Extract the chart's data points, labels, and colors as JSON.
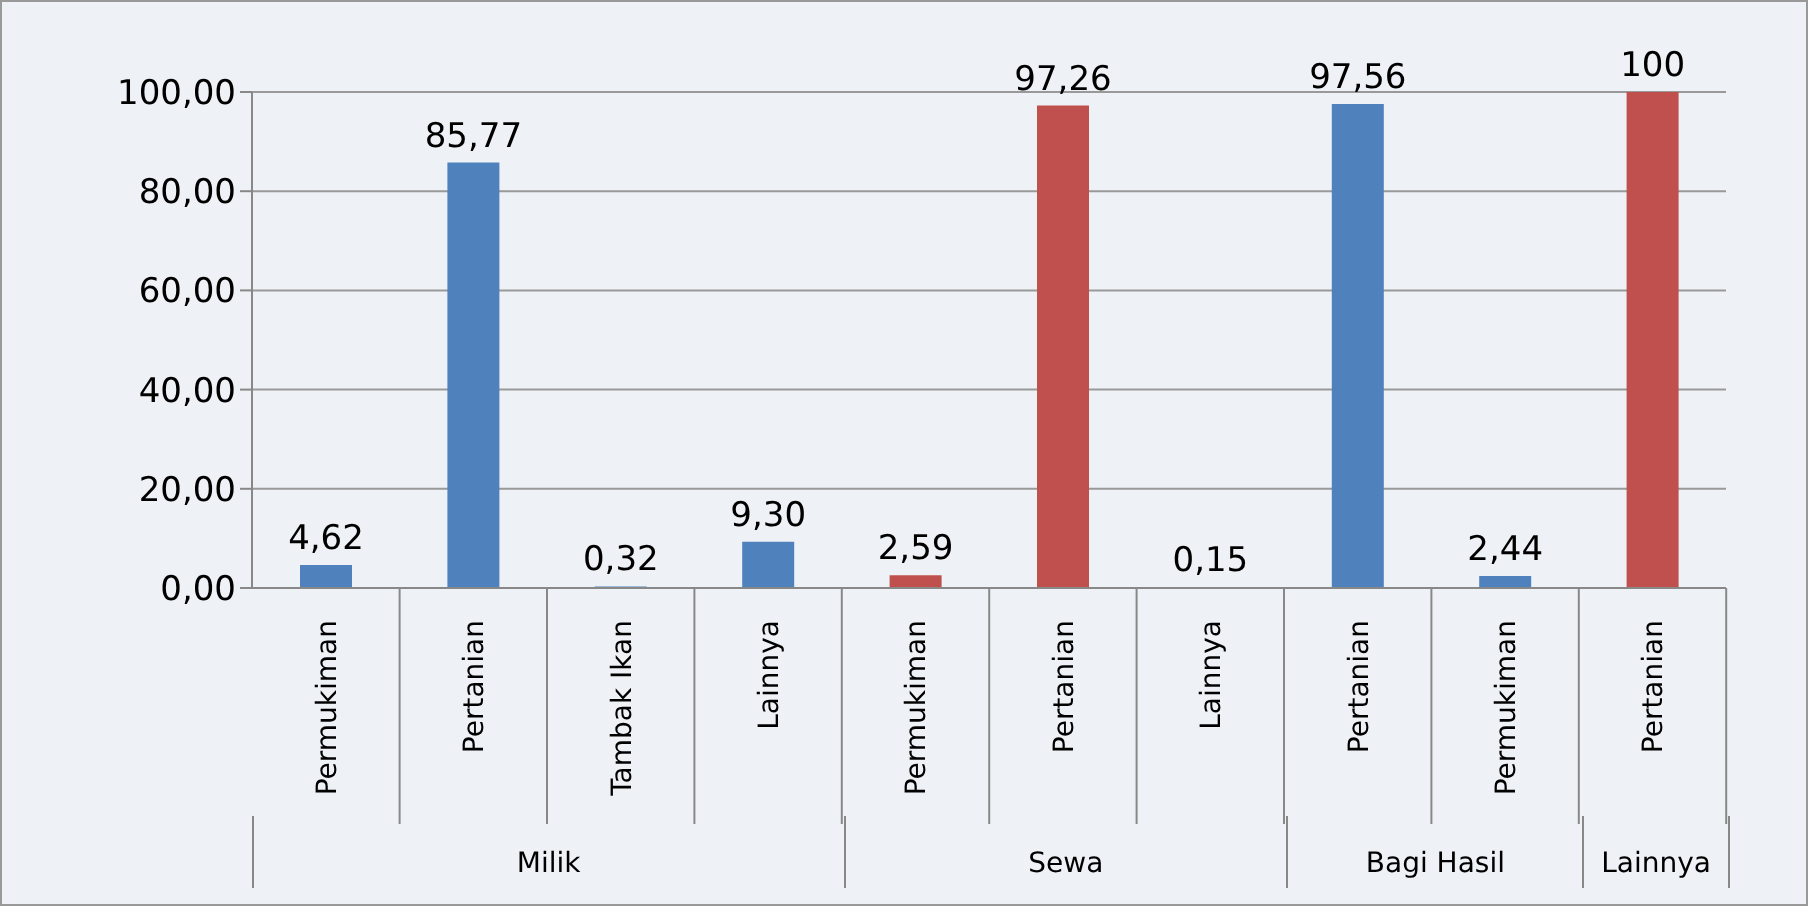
{
  "chart_data": {
    "type": "bar",
    "categories": [
      "Permukiman",
      "Pertanian",
      "Tambak Ikan",
      "Lainnya",
      "Permukiman",
      "Pertanian",
      "Lainnya",
      "Pertanian",
      "Permukiman",
      "Pertanian"
    ],
    "values": [
      4.62,
      85.77,
      0.32,
      9.3,
      2.59,
      97.26,
      0.15,
      97.56,
      2.44,
      100
    ],
    "colors": [
      "#4f81bd",
      "#4f81bd",
      "#4f81bd",
      "#4f81bd",
      "#c0504d",
      "#c0504d",
      "#c0504d",
      "#4f81bd",
      "#4f81bd",
      "#c0504d"
    ],
    "value_labels": [
      "4,62",
      "85,77",
      "0,32",
      "9,30",
      "2,59",
      "97,26",
      "0,15",
      "97,56",
      "2,44",
      "100"
    ],
    "ylim": [
      0,
      100
    ],
    "yticks": [
      {
        "value": 0,
        "label": "0,00"
      },
      {
        "value": 20,
        "label": "20,00"
      },
      {
        "value": 40,
        "label": "40,00"
      },
      {
        "value": 60,
        "label": "60,00"
      },
      {
        "value": 80,
        "label": "80,00"
      },
      {
        "value": 100,
        "label": "100,00"
      }
    ],
    "grid": "y",
    "legend": false,
    "annotations": [
      "Milik",
      "Sewa",
      "Bagi Hasil",
      "Lainnya"
    ]
  }
}
